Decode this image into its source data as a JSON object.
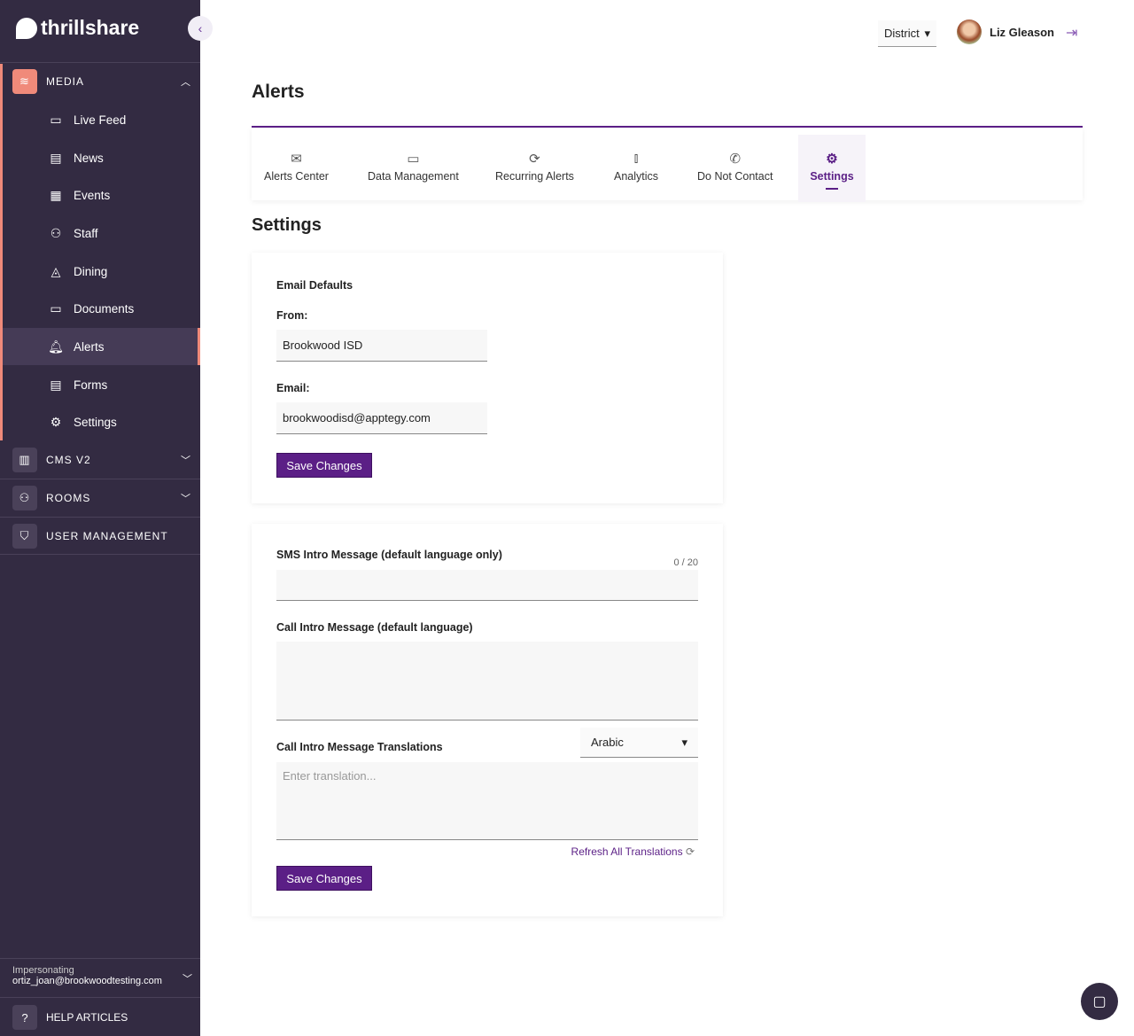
{
  "brand": {
    "name": "thrillshare"
  },
  "sidebar": {
    "sections": [
      {
        "label": "MEDIA",
        "icon": "layers-icon"
      },
      {
        "label": "CMS V2",
        "icon": "layout-icon"
      },
      {
        "label": "ROOMS",
        "icon": "users-icon"
      },
      {
        "label": "USER MANAGEMENT",
        "icon": "shield-user-icon"
      }
    ],
    "items": [
      {
        "label": "Live Feed",
        "icon": "feed-icon"
      },
      {
        "label": "News",
        "icon": "news-icon"
      },
      {
        "label": "Events",
        "icon": "calendar-icon"
      },
      {
        "label": "Staff",
        "icon": "staff-icon"
      },
      {
        "label": "Dining",
        "icon": "pizza-icon"
      },
      {
        "label": "Documents",
        "icon": "folder-icon"
      },
      {
        "label": "Alerts",
        "icon": "bell-icon",
        "active": true
      },
      {
        "label": "Forms",
        "icon": "forms-icon"
      },
      {
        "label": "Settings",
        "icon": "gear-icon"
      }
    ],
    "impersonating_label": "Impersonating",
    "impersonating_email": "ortiz_joan@brookwoodtesting.com",
    "help": "HELP ARTICLES"
  },
  "header": {
    "scope": "District",
    "user": "Liz Gleason"
  },
  "page": {
    "title": "Alerts",
    "subtitle": "Settings"
  },
  "tabs": [
    {
      "label": "Alerts Center",
      "icon": "mail-icon"
    },
    {
      "label": "Data Management",
      "icon": "monitor-icon"
    },
    {
      "label": "Recurring Alerts",
      "icon": "refresh-icon"
    },
    {
      "label": "Analytics",
      "icon": "bar-chart-icon"
    },
    {
      "label": "Do Not Contact",
      "icon": "phone-off-icon"
    },
    {
      "label": "Settings",
      "icon": "gear-icon",
      "active": true
    }
  ],
  "email": {
    "heading": "Email Defaults",
    "from_label": "From:",
    "from_value": "Brookwood ISD",
    "email_label": "Email:",
    "email_value": "brookwoodisd@apptegy.com",
    "save": "Save Changes"
  },
  "messages": {
    "sms_label": "SMS Intro Message (default language only)",
    "sms_counter": "0 / 20",
    "call_label": "Call Intro Message (default language)",
    "trans_label": "Call Intro Message Translations",
    "language": "Arabic",
    "trans_placeholder": "Enter translation...",
    "refresh": "Refresh All Translations",
    "save": "Save Changes"
  },
  "colors": {
    "sidebar": "#332b42",
    "accent": "#5b1f86",
    "media": "#f08a7a"
  }
}
